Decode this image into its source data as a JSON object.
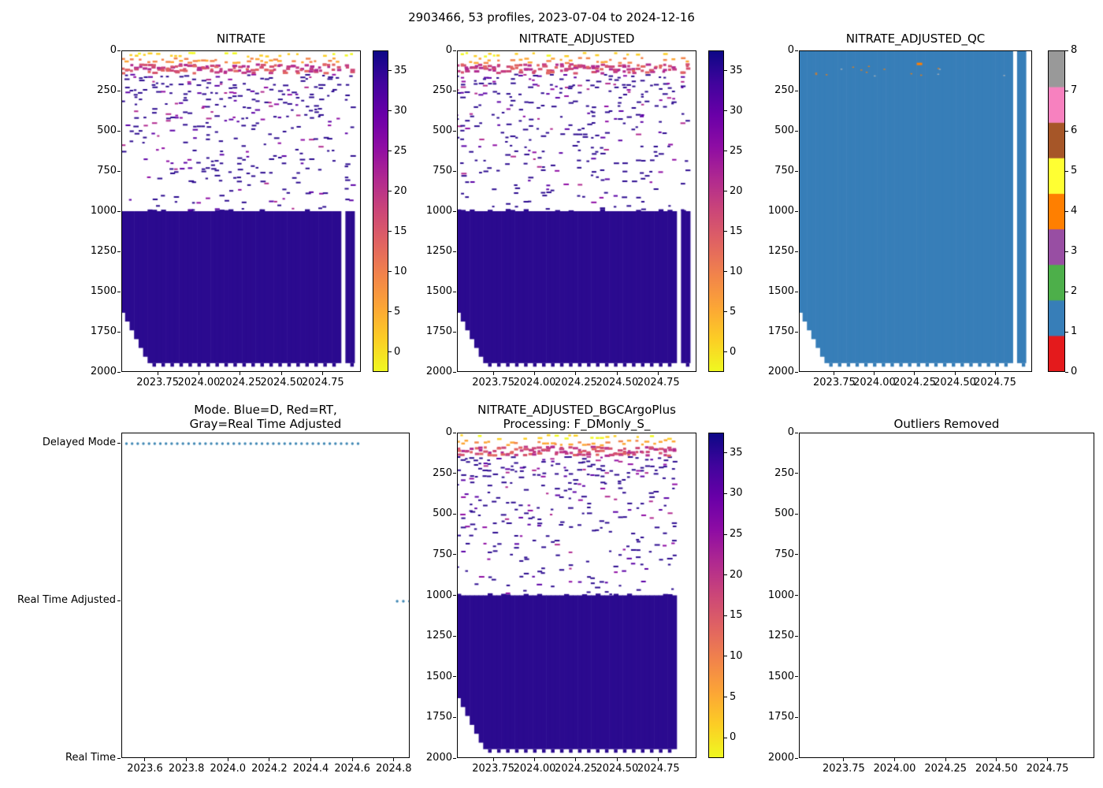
{
  "suptitle": "2903466, 53 profiles, 2023-07-04 to 2024-12-16",
  "chart_data": [
    {
      "type": "heatmap",
      "title": "NITRATE",
      "xlabel": "",
      "ylabel": "",
      "x_range": [
        2023.53,
        2024.98
      ],
      "y_range": [
        0,
        2000
      ],
      "x_ticks": [
        {
          "v": 2023.75,
          "label": "2023.75"
        },
        {
          "v": 2024.0,
          "label": "2024.00"
        },
        {
          "v": 2024.25,
          "label": "2024.25"
        },
        {
          "v": 2024.5,
          "label": "2024.50"
        },
        {
          "v": 2024.75,
          "label": "2024.75"
        }
      ],
      "y_ticks": [
        {
          "v": 0,
          "label": "0"
        },
        {
          "v": 250,
          "label": "250"
        },
        {
          "v": 500,
          "label": "500"
        },
        {
          "v": 750,
          "label": "750"
        },
        {
          "v": 1000,
          "label": "1000"
        },
        {
          "v": 1250,
          "label": "1250"
        },
        {
          "v": 1500,
          "label": "1500"
        },
        {
          "v": 1750,
          "label": "1750"
        },
        {
          "v": 2000,
          "label": "2000"
        }
      ],
      "profiles": {
        "start": 2023.507,
        "step": 0.0274,
        "end": 2024.956,
        "count": 53
      },
      "missing_profile_x": [
        2024.87,
        2024.885
      ],
      "deep": {
        "top_depth": 1000,
        "bottom_depth": 1950,
        "value": 35.5,
        "color": "#2b0a8f"
      },
      "staircase_depths": [
        1580,
        1635,
        1690,
        1745,
        1800,
        1855,
        1910
      ],
      "surface_band": {
        "depth": [
          75,
          135
        ],
        "value_range": [
          12,
          26
        ]
      },
      "upper_ocean": {
        "depth": [
          0,
          1000
        ],
        "value_range": [
          28,
          38
        ]
      },
      "seed": 7,
      "colorbar": {
        "style": "continuous",
        "colormap": "plasma_r",
        "range": [
          -2.5,
          37.5
        ],
        "ticks": [
          {
            "v": 0,
            "label": "0"
          },
          {
            "v": 5,
            "label": "5"
          },
          {
            "v": 10,
            "label": "10"
          },
          {
            "v": 15,
            "label": "15"
          },
          {
            "v": 20,
            "label": "20"
          },
          {
            "v": 25,
            "label": "25"
          },
          {
            "v": 30,
            "label": "30"
          },
          {
            "v": 35,
            "label": "35"
          }
        ]
      }
    },
    {
      "type": "heatmap",
      "title": "NITRATE_ADJUSTED",
      "xlabel": "",
      "ylabel": "",
      "x_range": [
        2023.53,
        2024.98
      ],
      "y_range": [
        0,
        2000
      ],
      "x_ticks": [
        {
          "v": 2023.75,
          "label": "2023.75"
        },
        {
          "v": 2024.0,
          "label": "2024.00"
        },
        {
          "v": 2024.25,
          "label": "2024.25"
        },
        {
          "v": 2024.5,
          "label": "2024.50"
        },
        {
          "v": 2024.75,
          "label": "2024.75"
        }
      ],
      "y_ticks": [
        {
          "v": 0,
          "label": "0"
        },
        {
          "v": 250,
          "label": "250"
        },
        {
          "v": 500,
          "label": "500"
        },
        {
          "v": 750,
          "label": "750"
        },
        {
          "v": 1000,
          "label": "1000"
        },
        {
          "v": 1250,
          "label": "1250"
        },
        {
          "v": 1500,
          "label": "1500"
        },
        {
          "v": 1750,
          "label": "1750"
        },
        {
          "v": 2000,
          "label": "2000"
        }
      ],
      "profiles": {
        "start": 2023.507,
        "step": 0.0274,
        "end": 2024.956,
        "count": 53
      },
      "missing_profile_x": [
        2024.87,
        2024.885
      ],
      "deep": {
        "top_depth": 1000,
        "bottom_depth": 1950,
        "value": 35.5,
        "color": "#2b0a8f"
      },
      "staircase_depths": [
        1580,
        1635,
        1690,
        1745,
        1800,
        1855,
        1910
      ],
      "surface_band": {
        "depth": [
          75,
          135
        ],
        "value_range": [
          12,
          26
        ]
      },
      "upper_ocean": {
        "depth": [
          0,
          1000
        ],
        "value_range": [
          28,
          38
        ]
      },
      "seed": 13,
      "colorbar": {
        "style": "continuous",
        "colormap": "plasma_r",
        "range": [
          -2.5,
          37.5
        ],
        "ticks": [
          {
            "v": 0,
            "label": "0"
          },
          {
            "v": 5,
            "label": "5"
          },
          {
            "v": 10,
            "label": "10"
          },
          {
            "v": 15,
            "label": "15"
          },
          {
            "v": 20,
            "label": "20"
          },
          {
            "v": 25,
            "label": "25"
          },
          {
            "v": 30,
            "label": "30"
          },
          {
            "v": 35,
            "label": "35"
          }
        ]
      }
    },
    {
      "type": "qc",
      "title": "NITRATE_ADJUSTED_QC",
      "xlabel": "",
      "ylabel": "",
      "x_range": [
        2023.53,
        2024.98
      ],
      "y_range": [
        0,
        2000
      ],
      "x_ticks": [
        {
          "v": 2023.75,
          "label": "2023.75"
        },
        {
          "v": 2024.0,
          "label": "2024.00"
        },
        {
          "v": 2024.25,
          "label": "2024.25"
        },
        {
          "v": 2024.5,
          "label": "2024.50"
        },
        {
          "v": 2024.75,
          "label": "2024.75"
        }
      ],
      "y_ticks": [
        {
          "v": 0,
          "label": "0"
        },
        {
          "v": 250,
          "label": "250"
        },
        {
          "v": 500,
          "label": "500"
        },
        {
          "v": 750,
          "label": "750"
        },
        {
          "v": 1000,
          "label": "1000"
        },
        {
          "v": 1250,
          "label": "1250"
        },
        {
          "v": 1500,
          "label": "1500"
        },
        {
          "v": 1750,
          "label": "1750"
        },
        {
          "v": 2000,
          "label": "2000"
        }
      ],
      "profiles": {
        "start": 2023.507,
        "step": 0.0274,
        "end": 2024.956,
        "count": 53
      },
      "missing_profile_x": [
        2024.87,
        2024.885
      ],
      "staircase_depths": [
        1580,
        1635,
        1690,
        1745,
        1800,
        1855,
        1910
      ],
      "bottom_depth": 1950,
      "fill_qc": 1,
      "fill_color": "#377eb8",
      "anomalies": {
        "orange_flag": {
          "x": 2024.28,
          "depth": 72,
          "qc": 4,
          "color": "#ff7f00"
        },
        "minor_specks": {
          "depth_range": [
            85,
            160
          ],
          "count": 16
        }
      },
      "seed": 29,
      "colorbar": {
        "style": "discrete",
        "colors": [
          "#e41a1c",
          "#377eb8",
          "#4daf4a",
          "#984ea3",
          "#ff7f00",
          "#ffff33",
          "#a65628",
          "#f781bf",
          "#999999"
        ],
        "ticks": [
          {
            "v": 0,
            "label": "0"
          },
          {
            "v": 1,
            "label": "1"
          },
          {
            "v": 2,
            "label": "2"
          },
          {
            "v": 3,
            "label": "3"
          },
          {
            "v": 4,
            "label": "4"
          },
          {
            "v": 5,
            "label": "5"
          },
          {
            "v": 6,
            "label": "6"
          },
          {
            "v": 7,
            "label": "7"
          },
          {
            "v": 8,
            "label": "8"
          }
        ]
      }
    },
    {
      "type": "scatter",
      "title": "Mode. Blue=D, Red=RT, Gray=Real Time Adjusted",
      "title_line1": "Mode. Blue=D, Red=RT,",
      "title_line2": "Gray=Real Time Adjusted",
      "x_range": [
        2023.486,
        2024.877
      ],
      "x_ticks": [
        {
          "v": 2023.6,
          "label": "2023.6"
        },
        {
          "v": 2023.8,
          "label": "2023.8"
        },
        {
          "v": 2024.0,
          "label": "2024.0"
        },
        {
          "v": 2024.2,
          "label": "2024.2"
        },
        {
          "v": 2024.4,
          "label": "2024.4"
        },
        {
          "v": 2024.6,
          "label": "2024.6"
        },
        {
          "v": 2024.8,
          "label": "2024.8"
        }
      ],
      "categories": [
        "Delayed Mode",
        "Real Time Adjusted",
        "Real Time"
      ],
      "marker_color": "#3f87b4",
      "series": [
        {
          "name": "Delayed Mode",
          "category_index": 0,
          "x_start": 2023.507,
          "x_end": 2024.64,
          "x_step": 0.0274
        },
        {
          "name": "Real Time Adjusted",
          "category_index": 1,
          "x_values": [
            2024.82,
            2024.85,
            2024.88
          ]
        },
        {
          "name": "Real Time",
          "category_index": 2,
          "x_values": []
        }
      ]
    },
    {
      "type": "heatmap",
      "title": "NITRATE_ADJUSTED_BGCArgoPlus Processing: F_DMonly_S_",
      "title_line1": "NITRATE_ADJUSTED_BGCArgoPlus",
      "title_line2": "Processing: F_DMonly_S_",
      "xlabel": "",
      "ylabel": "",
      "x_range": [
        2023.53,
        2024.98
      ],
      "y_range": [
        0,
        2000
      ],
      "x_ticks": [
        {
          "v": 2023.75,
          "label": "2023.75"
        },
        {
          "v": 2024.0,
          "label": "2024.00"
        },
        {
          "v": 2024.25,
          "label": "2024.25"
        },
        {
          "v": 2024.5,
          "label": "2024.50"
        },
        {
          "v": 2024.75,
          "label": "2024.75"
        }
      ],
      "y_ticks": [
        {
          "v": 0,
          "label": "0"
        },
        {
          "v": 250,
          "label": "250"
        },
        {
          "v": 500,
          "label": "500"
        },
        {
          "v": 750,
          "label": "750"
        },
        {
          "v": 1000,
          "label": "1000"
        },
        {
          "v": 1250,
          "label": "1250"
        },
        {
          "v": 1500,
          "label": "1500"
        },
        {
          "v": 1750,
          "label": "1750"
        },
        {
          "v": 2000,
          "label": "2000"
        }
      ],
      "profiles": {
        "start": 2023.507,
        "step": 0.0274,
        "end": 2024.855,
        "count": 50
      },
      "missing_profile_x": null,
      "deep": {
        "top_depth": 1000,
        "bottom_depth": 1950,
        "value": 35.5,
        "color": "#2b0a8f"
      },
      "staircase_depths": [
        1580,
        1635,
        1690,
        1745,
        1800,
        1855,
        1910
      ],
      "surface_band": {
        "depth": [
          75,
          135
        ],
        "value_range": [
          12,
          26
        ]
      },
      "upper_ocean": {
        "depth": [
          0,
          1000
        ],
        "value_range": [
          28,
          38
        ]
      },
      "seed": 21,
      "colorbar": {
        "style": "continuous",
        "colormap": "plasma_r",
        "range": [
          -2.5,
          37.5
        ],
        "ticks": [
          {
            "v": 0,
            "label": "0"
          },
          {
            "v": 5,
            "label": "5"
          },
          {
            "v": 10,
            "label": "10"
          },
          {
            "v": 15,
            "label": "15"
          },
          {
            "v": 20,
            "label": "20"
          },
          {
            "v": 25,
            "label": "25"
          },
          {
            "v": 30,
            "label": "30"
          },
          {
            "v": 35,
            "label": "35"
          }
        ]
      }
    },
    {
      "type": "empty",
      "title": "Outliers Removed",
      "xlabel": "",
      "ylabel": "",
      "x_range": [
        2023.53,
        2024.98
      ],
      "y_range": [
        0,
        2000
      ],
      "x_ticks": [
        {
          "v": 2023.75,
          "label": "2023.75"
        },
        {
          "v": 2024.0,
          "label": "2024.00"
        },
        {
          "v": 2024.25,
          "label": "2024.25"
        },
        {
          "v": 2024.5,
          "label": "2024.50"
        },
        {
          "v": 2024.75,
          "label": "2024.75"
        }
      ],
      "y_ticks": [
        {
          "v": 0,
          "label": "0"
        },
        {
          "v": 250,
          "label": "250"
        },
        {
          "v": 500,
          "label": "500"
        },
        {
          "v": 750,
          "label": "750"
        },
        {
          "v": 1000,
          "label": "1000"
        },
        {
          "v": 1250,
          "label": "1250"
        },
        {
          "v": 1500,
          "label": "1500"
        },
        {
          "v": 1750,
          "label": "1750"
        },
        {
          "v": 2000,
          "label": "2000"
        }
      ]
    }
  ]
}
